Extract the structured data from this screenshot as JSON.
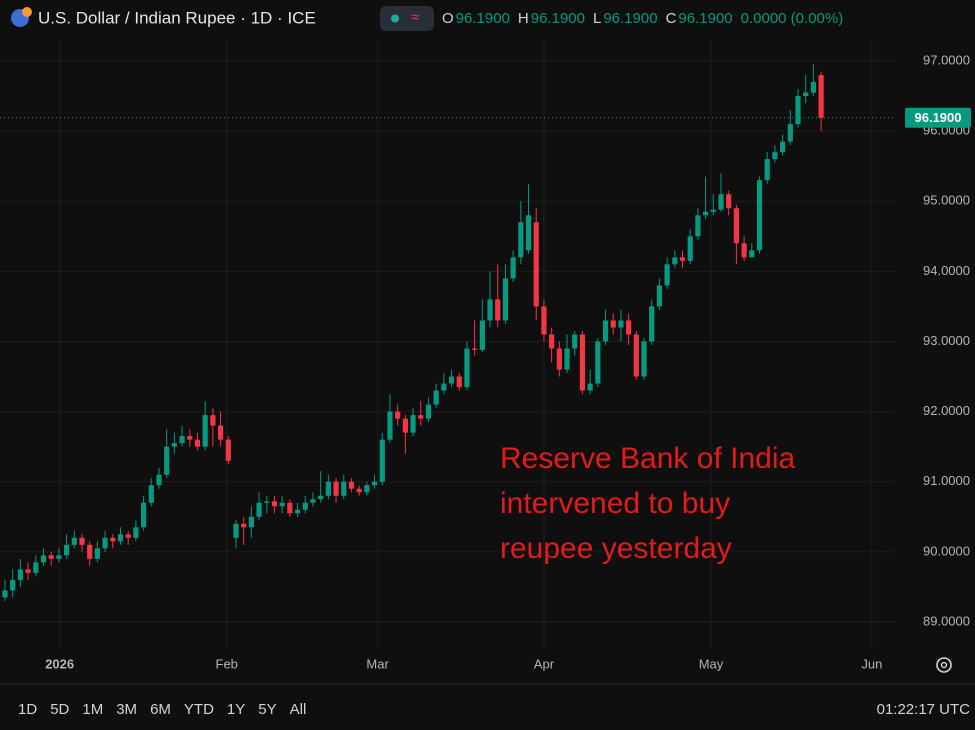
{
  "header": {
    "title": "U.S. Dollar / Indian Rupee · 1D · ICE",
    "ohlc": [
      {
        "label": "O",
        "value": "96.1900"
      },
      {
        "label": "H",
        "value": "96.1900"
      },
      {
        "label": "L",
        "value": "96.1900"
      },
      {
        "label": "C",
        "value": "96.1900"
      }
    ],
    "change": "0.0000 (0.00%)"
  },
  "toolbar": {
    "ranges": [
      "1D",
      "5D",
      "1M",
      "3M",
      "6M",
      "YTD",
      "1Y",
      "5Y",
      "All"
    ],
    "time": "01:22:17 UTC"
  },
  "chart_data": {
    "type": "candlestick",
    "up_color": "#089981",
    "down_color": "#f23645",
    "annotation": [
      "Reserve Bank of India",
      "intervened to buy",
      "reupee yesterday"
    ],
    "last_price": {
      "value": 96.19,
      "label": "96.1900"
    },
    "xlim": [
      -0.65,
      115.6
    ],
    "xticks": [
      {
        "value": 7.1,
        "label": "2026"
      },
      {
        "value": 28.8,
        "label": "Feb"
      },
      {
        "value": 48.4,
        "label": "Mar"
      },
      {
        "value": 70,
        "label": "Apr"
      },
      {
        "value": 91.7,
        "label": "May"
      },
      {
        "value": 112.6,
        "label": "Jun"
      }
    ],
    "ylim": [
      88.6,
      97.87
    ],
    "yticks": [
      {
        "value": 89,
        "label": "89.0000"
      },
      {
        "value": 90,
        "label": "90.0000"
      },
      {
        "value": 91,
        "label": "91.0000"
      },
      {
        "value": 92,
        "label": "92.0000"
      },
      {
        "value": 93,
        "label": "93.0000"
      },
      {
        "value": 94,
        "label": "94.0000"
      },
      {
        "value": 95,
        "label": "95.0000"
      },
      {
        "value": 96,
        "label": "96.0000"
      },
      {
        "value": 97,
        "label": "97.0000"
      }
    ],
    "grid": true,
    "open": [
      89.35,
      89.45,
      89.6,
      89.75,
      89.7,
      89.85,
      89.95,
      89.9,
      89.95,
      90.1,
      90.2,
      90.1,
      89.9,
      90.05,
      90.2,
      90.15,
      90.25,
      90.2,
      90.35,
      90.7,
      90.95,
      91.1,
      91.5,
      91.55,
      91.65,
      91.6,
      91.5,
      91.95,
      91.8,
      91.6,
      90.2,
      90.4,
      90.35,
      90.5,
      90.7,
      90.72,
      90.65,
      90.7,
      90.55,
      90.6,
      90.7,
      90.75,
      90.8,
      91.0,
      90.8,
      91.0,
      90.9,
      90.85,
      90.95,
      91.0,
      91.6,
      92.0,
      91.9,
      91.7,
      91.95,
      91.9,
      92.1,
      92.3,
      92.4,
      92.5,
      92.35,
      92.9,
      92.88,
      93.3,
      93.6,
      93.3,
      93.9,
      94.2,
      94.3,
      94.7,
      93.5,
      93.1,
      92.9,
      92.6,
      92.9,
      93.1,
      92.3,
      92.4,
      93.0,
      93.3,
      93.2,
      93.3,
      93.1,
      92.5,
      93.0,
      93.5,
      93.8,
      94.1,
      94.2,
      94.15,
      94.5,
      94.8,
      94.85,
      94.88,
      95.1,
      94.9,
      94.4,
      94.2,
      94.3,
      95.3,
      95.6,
      95.7,
      95.85,
      96.1,
      96.5,
      96.55,
      96.8
    ],
    "high": [
      89.6,
      89.75,
      89.9,
      89.85,
      89.95,
      90.05,
      90.0,
      90.05,
      90.25,
      90.3,
      90.25,
      90.15,
      90.15,
      90.3,
      90.25,
      90.35,
      90.3,
      90.45,
      90.8,
      91.05,
      91.2,
      91.75,
      91.7,
      91.8,
      91.75,
      91.7,
      92.15,
      92.05,
      92.0,
      91.65,
      90.45,
      90.5,
      90.65,
      90.85,
      90.8,
      90.8,
      90.8,
      90.75,
      90.7,
      90.8,
      90.85,
      91.15,
      91.1,
      91.05,
      91.1,
      91.05,
      90.95,
      91.0,
      91.1,
      91.7,
      92.25,
      92.1,
      91.95,
      92.05,
      92.15,
      92.2,
      92.4,
      92.55,
      92.6,
      92.55,
      93.0,
      93.3,
      93.6,
      94.0,
      94.1,
      94.1,
      94.3,
      95.0,
      95.25,
      94.9,
      93.6,
      93.2,
      93.0,
      93.1,
      93.15,
      93.15,
      92.6,
      93.05,
      93.45,
      93.4,
      93.45,
      93.4,
      93.15,
      93.05,
      93.6,
      93.9,
      94.2,
      94.3,
      94.3,
      94.6,
      94.9,
      95.35,
      95.1,
      95.4,
      95.15,
      94.95,
      94.5,
      94.4,
      95.35,
      95.7,
      95.8,
      95.95,
      96.3,
      96.6,
      96.8,
      96.95,
      96.85
    ],
    "low": [
      89.3,
      89.35,
      89.5,
      89.6,
      89.65,
      89.8,
      89.8,
      89.85,
      89.9,
      90.05,
      90.0,
      89.8,
      89.85,
      90.0,
      90.05,
      90.1,
      90.1,
      90.15,
      90.3,
      90.65,
      90.9,
      91.05,
      91.4,
      91.5,
      91.5,
      91.45,
      91.45,
      91.5,
      91.5,
      91.25,
      90.05,
      90.1,
      90.2,
      90.45,
      90.55,
      90.55,
      90.55,
      90.5,
      90.5,
      90.55,
      90.65,
      90.7,
      90.75,
      90.7,
      90.75,
      90.85,
      90.8,
      90.8,
      90.9,
      90.95,
      91.55,
      91.8,
      91.4,
      91.65,
      91.8,
      91.85,
      92.05,
      92.25,
      92.35,
      92.3,
      92.3,
      92.8,
      92.85,
      93.2,
      93.2,
      93.25,
      93.85,
      94.1,
      94.25,
      93.3,
      93.0,
      92.7,
      92.5,
      92.55,
      92.8,
      92.25,
      92.25,
      92.35,
      92.95,
      93.1,
      93.0,
      92.95,
      92.45,
      92.45,
      92.95,
      93.45,
      93.75,
      94.05,
      94.05,
      94.1,
      94.45,
      94.75,
      94.8,
      94.85,
      94.8,
      94.1,
      94.15,
      94.2,
      94.25,
      95.25,
      95.55,
      95.65,
      95.8,
      96.05,
      96.4,
      96.5,
      96.0
    ],
    "close": [
      89.45,
      89.6,
      89.75,
      89.7,
      89.85,
      89.95,
      89.9,
      89.95,
      90.1,
      90.2,
      90.1,
      89.9,
      90.05,
      90.2,
      90.15,
      90.25,
      90.2,
      90.35,
      90.7,
      90.95,
      91.1,
      91.5,
      91.55,
      91.65,
      91.6,
      91.5,
      91.95,
      91.8,
      91.6,
      91.3,
      90.4,
      90.35,
      90.5,
      90.7,
      90.72,
      90.65,
      90.7,
      90.55,
      90.6,
      90.7,
      90.75,
      90.8,
      91.0,
      90.8,
      91.0,
      90.9,
      90.85,
      90.95,
      91.0,
      91.6,
      92.0,
      91.9,
      91.7,
      91.95,
      91.9,
      92.1,
      92.3,
      92.4,
      92.5,
      92.35,
      92.9,
      92.88,
      93.3,
      93.6,
      93.3,
      93.9,
      94.2,
      94.7,
      94.8,
      93.5,
      93.1,
      92.9,
      92.6,
      92.9,
      93.1,
      92.3,
      92.4,
      93.0,
      93.3,
      93.2,
      93.3,
      93.1,
      92.5,
      93.0,
      93.5,
      93.8,
      94.1,
      94.2,
      94.15,
      94.5,
      94.8,
      94.85,
      94.88,
      95.1,
      94.9,
      94.4,
      94.2,
      94.3,
      95.3,
      95.6,
      95.7,
      95.85,
      96.1,
      96.5,
      96.55,
      96.7,
      96.19
    ]
  }
}
